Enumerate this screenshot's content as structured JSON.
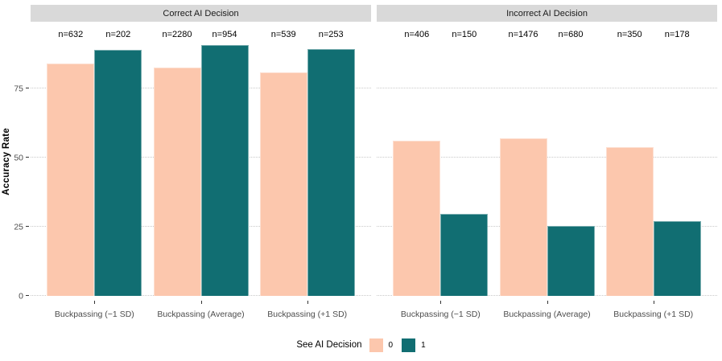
{
  "chart_data": {
    "type": "bar",
    "layout": "grouped-bars-two-facets",
    "ylabel": "Accuracy Rate",
    "yticks": [
      0,
      25,
      50,
      75
    ],
    "ylim": [
      0,
      97.5
    ],
    "grid": "horizontal-dotted",
    "categories": [
      "Buckpassing (−1 SD)",
      "Buckpassing (Average)",
      "Buckpassing (+1 SD)"
    ],
    "legend": {
      "title": "See AI Decision",
      "position": "bottom",
      "items": [
        {
          "label": "0",
          "color": "#FCC7AD"
        },
        {
          "label": "1",
          "color": "#116E72"
        }
      ]
    },
    "facets": [
      {
        "title": "Correct AI Decision",
        "series": [
          {
            "name": "0",
            "color": "#FCC7AD",
            "values": [
              84.2,
              82.8,
              80.9
            ],
            "n_labels": [
              "n=632",
              "n=2280",
              "n=539"
            ]
          },
          {
            "name": "1",
            "color": "#116E72",
            "values": [
              89.1,
              90.7,
              89.3
            ],
            "n_labels": [
              "n=202",
              "n=954",
              "n=253"
            ]
          }
        ]
      },
      {
        "title": "Incorrect AI Decision",
        "series": [
          {
            "name": "0",
            "color": "#FCC7AD",
            "values": [
              56.3,
              57.2,
              53.9
            ],
            "n_labels": [
              "n=406",
              "n=1476",
              "n=350"
            ]
          },
          {
            "name": "1",
            "color": "#116E72",
            "values": [
              29.8,
              25.4,
              27.2
            ],
            "n_labels": [
              "n=150",
              "n=680",
              "n=178"
            ]
          }
        ]
      }
    ],
    "colors": {
      "strip_background": "#D9D9D9",
      "gridline": "#C9C9C9",
      "axis_text": "#4D4D4D"
    }
  }
}
